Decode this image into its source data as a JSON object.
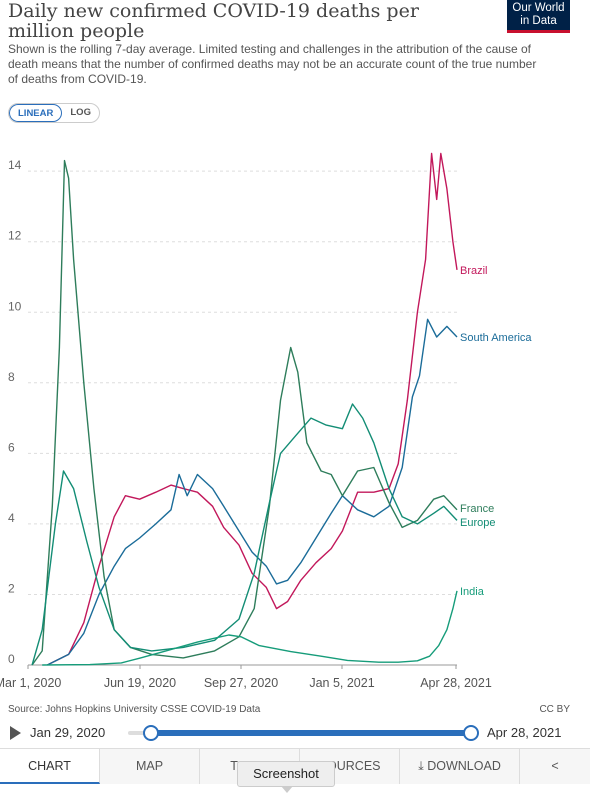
{
  "header": {
    "title": "Daily new confirmed COVID-19 deaths per million people",
    "subtitle": "Shown is the rolling 7-day average. Limited testing and challenges in the attribution of the cause of death means that the number of confirmed deaths may not be an accurate count of the true number of deaths from COVID-19.",
    "logo_line1": "Our World",
    "logo_line2": "in Data"
  },
  "scale_toggle": {
    "linear": "LINEAR",
    "log": "LOG",
    "active": "linear"
  },
  "chart_data": {
    "type": "line",
    "title": "Daily new confirmed COVID-19 deaths per million people",
    "xlabel": "",
    "ylabel": "",
    "x_domain": [
      "2020-03-01",
      "2021-04-28"
    ],
    "x_tick_labels": [
      "Mar 1, 2020",
      "Jun 19, 2020",
      "Sep 27, 2020",
      "Jan 5, 2021",
      "Apr 28, 2021"
    ],
    "ylim": [
      0,
      14.6
    ],
    "y_ticks": [
      0,
      2,
      4,
      6,
      8,
      10,
      12,
      14
    ],
    "grid": "horizontal dashed",
    "legend": "end-of-line labels",
    "series": [
      {
        "name": "Brazil",
        "color": "#c2185b",
        "points": [
          [
            "2020-03-20",
            0
          ],
          [
            "2020-04-10",
            0.3
          ],
          [
            "2020-04-25",
            1.2
          ],
          [
            "2020-05-10",
            2.8
          ],
          [
            "2020-05-25",
            4.2
          ],
          [
            "2020-06-05",
            4.8
          ],
          [
            "2020-06-19",
            4.7
          ],
          [
            "2020-07-05",
            4.9
          ],
          [
            "2020-07-20",
            5.1
          ],
          [
            "2020-08-01",
            5.0
          ],
          [
            "2020-08-15",
            4.9
          ],
          [
            "2020-08-30",
            4.5
          ],
          [
            "2020-09-10",
            3.9
          ],
          [
            "2020-09-25",
            3.4
          ],
          [
            "2020-10-08",
            2.6
          ],
          [
            "2020-10-22",
            2.2
          ],
          [
            "2020-11-01",
            1.6
          ],
          [
            "2020-11-12",
            1.8
          ],
          [
            "2020-11-25",
            2.4
          ],
          [
            "2020-12-10",
            2.9
          ],
          [
            "2020-12-25",
            3.3
          ],
          [
            "2021-01-05",
            3.8
          ],
          [
            "2021-01-20",
            4.9
          ],
          [
            "2021-02-05",
            4.9
          ],
          [
            "2021-02-20",
            5.0
          ],
          [
            "2021-03-01",
            5.7
          ],
          [
            "2021-03-10",
            7.5
          ],
          [
            "2021-03-20",
            10.0
          ],
          [
            "2021-03-28",
            11.5
          ],
          [
            "2021-04-03",
            14.5
          ],
          [
            "2021-04-08",
            13.2
          ],
          [
            "2021-04-12",
            14.5
          ],
          [
            "2021-04-18",
            13.5
          ],
          [
            "2021-04-24",
            12.0
          ],
          [
            "2021-04-28",
            11.2
          ]
        ]
      },
      {
        "name": "South America",
        "color": "#1b6c99",
        "points": [
          [
            "2020-03-20",
            0
          ],
          [
            "2020-04-10",
            0.3
          ],
          [
            "2020-04-25",
            0.9
          ],
          [
            "2020-05-10",
            2.0
          ],
          [
            "2020-05-25",
            2.8
          ],
          [
            "2020-06-05",
            3.3
          ],
          [
            "2020-06-19",
            3.6
          ],
          [
            "2020-07-05",
            4.0
          ],
          [
            "2020-07-20",
            4.4
          ],
          [
            "2020-07-28",
            5.4
          ],
          [
            "2020-08-05",
            4.8
          ],
          [
            "2020-08-15",
            5.4
          ],
          [
            "2020-08-30",
            5.0
          ],
          [
            "2020-09-10",
            4.5
          ],
          [
            "2020-09-25",
            3.8
          ],
          [
            "2020-10-08",
            3.2
          ],
          [
            "2020-10-22",
            2.8
          ],
          [
            "2020-11-01",
            2.3
          ],
          [
            "2020-11-12",
            2.4
          ],
          [
            "2020-11-25",
            2.9
          ],
          [
            "2020-12-10",
            3.6
          ],
          [
            "2020-12-25",
            4.3
          ],
          [
            "2021-01-05",
            4.8
          ],
          [
            "2021-01-20",
            4.4
          ],
          [
            "2021-02-05",
            4.2
          ],
          [
            "2021-02-20",
            4.5
          ],
          [
            "2021-03-05",
            5.6
          ],
          [
            "2021-03-15",
            7.6
          ],
          [
            "2021-03-22",
            8.2
          ],
          [
            "2021-03-30",
            9.8
          ],
          [
            "2021-04-08",
            9.3
          ],
          [
            "2021-04-18",
            9.6
          ],
          [
            "2021-04-28",
            9.3
          ]
        ]
      },
      {
        "name": "France",
        "color": "#2e7d5b",
        "points": [
          [
            "2020-03-05",
            0
          ],
          [
            "2020-03-15",
            0.4
          ],
          [
            "2020-03-25",
            4.5
          ],
          [
            "2020-04-01",
            9.0
          ],
          [
            "2020-04-06",
            14.3
          ],
          [
            "2020-04-10",
            13.8
          ],
          [
            "2020-04-15",
            11.5
          ],
          [
            "2020-04-25",
            8.0
          ],
          [
            "2020-05-05",
            5.0
          ],
          [
            "2020-05-15",
            2.5
          ],
          [
            "2020-05-25",
            1.0
          ],
          [
            "2020-06-10",
            0.5
          ],
          [
            "2020-07-01",
            0.3
          ],
          [
            "2020-08-01",
            0.2
          ],
          [
            "2020-09-01",
            0.4
          ],
          [
            "2020-09-25",
            0.8
          ],
          [
            "2020-10-10",
            1.6
          ],
          [
            "2020-10-25",
            4.5
          ],
          [
            "2020-11-05",
            7.5
          ],
          [
            "2020-11-15",
            9.0
          ],
          [
            "2020-11-22",
            8.3
          ],
          [
            "2020-12-01",
            6.3
          ],
          [
            "2020-12-15",
            5.5
          ],
          [
            "2020-12-25",
            5.4
          ],
          [
            "2021-01-05",
            4.8
          ],
          [
            "2021-01-20",
            5.5
          ],
          [
            "2021-02-05",
            5.6
          ],
          [
            "2021-02-20",
            4.6
          ],
          [
            "2021-03-05",
            3.9
          ],
          [
            "2021-03-20",
            4.1
          ],
          [
            "2021-04-05",
            4.7
          ],
          [
            "2021-04-15",
            4.8
          ],
          [
            "2021-04-28",
            4.4
          ]
        ]
      },
      {
        "name": "Europe",
        "color": "#138d75",
        "points": [
          [
            "2020-03-05",
            0
          ],
          [
            "2020-03-15",
            1.0
          ],
          [
            "2020-03-28",
            4.0
          ],
          [
            "2020-04-05",
            5.5
          ],
          [
            "2020-04-15",
            5.0
          ],
          [
            "2020-04-28",
            3.5
          ],
          [
            "2020-05-10",
            2.2
          ],
          [
            "2020-05-25",
            1.0
          ],
          [
            "2020-06-10",
            0.5
          ],
          [
            "2020-07-01",
            0.4
          ],
          [
            "2020-08-01",
            0.5
          ],
          [
            "2020-09-01",
            0.7
          ],
          [
            "2020-09-25",
            1.3
          ],
          [
            "2020-10-10",
            2.6
          ],
          [
            "2020-10-25",
            4.6
          ],
          [
            "2020-11-05",
            6.0
          ],
          [
            "2020-11-20",
            6.5
          ],
          [
            "2020-12-05",
            7.0
          ],
          [
            "2020-12-20",
            6.8
          ],
          [
            "2021-01-05",
            6.7
          ],
          [
            "2021-01-15",
            7.4
          ],
          [
            "2021-01-25",
            7.0
          ],
          [
            "2021-02-05",
            6.3
          ],
          [
            "2021-02-20",
            5.0
          ],
          [
            "2021-03-05",
            4.2
          ],
          [
            "2021-03-20",
            4.0
          ],
          [
            "2021-04-05",
            4.3
          ],
          [
            "2021-04-15",
            4.5
          ],
          [
            "2021-04-28",
            4.1
          ]
        ]
      },
      {
        "name": "India",
        "color": "#169c7a",
        "points": [
          [
            "2020-03-15",
            0
          ],
          [
            "2020-05-01",
            0.01
          ],
          [
            "2020-06-01",
            0.06
          ],
          [
            "2020-06-20",
            0.2
          ],
          [
            "2020-07-15",
            0.4
          ],
          [
            "2020-08-15",
            0.65
          ],
          [
            "2020-09-15",
            0.85
          ],
          [
            "2020-09-27",
            0.8
          ],
          [
            "2020-10-15",
            0.55
          ],
          [
            "2020-11-15",
            0.38
          ],
          [
            "2020-12-15",
            0.25
          ],
          [
            "2021-01-10",
            0.13
          ],
          [
            "2021-02-10",
            0.08
          ],
          [
            "2021-03-01",
            0.08
          ],
          [
            "2021-03-20",
            0.12
          ],
          [
            "2021-04-01",
            0.25
          ],
          [
            "2021-04-10",
            0.55
          ],
          [
            "2021-04-18",
            1.0
          ],
          [
            "2021-04-24",
            1.6
          ],
          [
            "2021-04-28",
            2.1
          ]
        ]
      }
    ]
  },
  "footer": {
    "source": "Source: Johns Hopkins University CSSE COVID-19 Data",
    "license": "CC BY"
  },
  "timeline": {
    "start_label": "Jan 29, 2020",
    "end_label": "Apr 28, 2021"
  },
  "tabs": {
    "chart": "CHART",
    "map": "MAP",
    "table": "TABLE",
    "sources": "SOURCES",
    "download": "DOWNLOAD",
    "active": "chart"
  },
  "tooltip": {
    "text": "Screenshot"
  },
  "colors": {
    "accent": "#2a6ebb",
    "logo_bg": "#002147",
    "logo_stripe": "#c8102e"
  }
}
